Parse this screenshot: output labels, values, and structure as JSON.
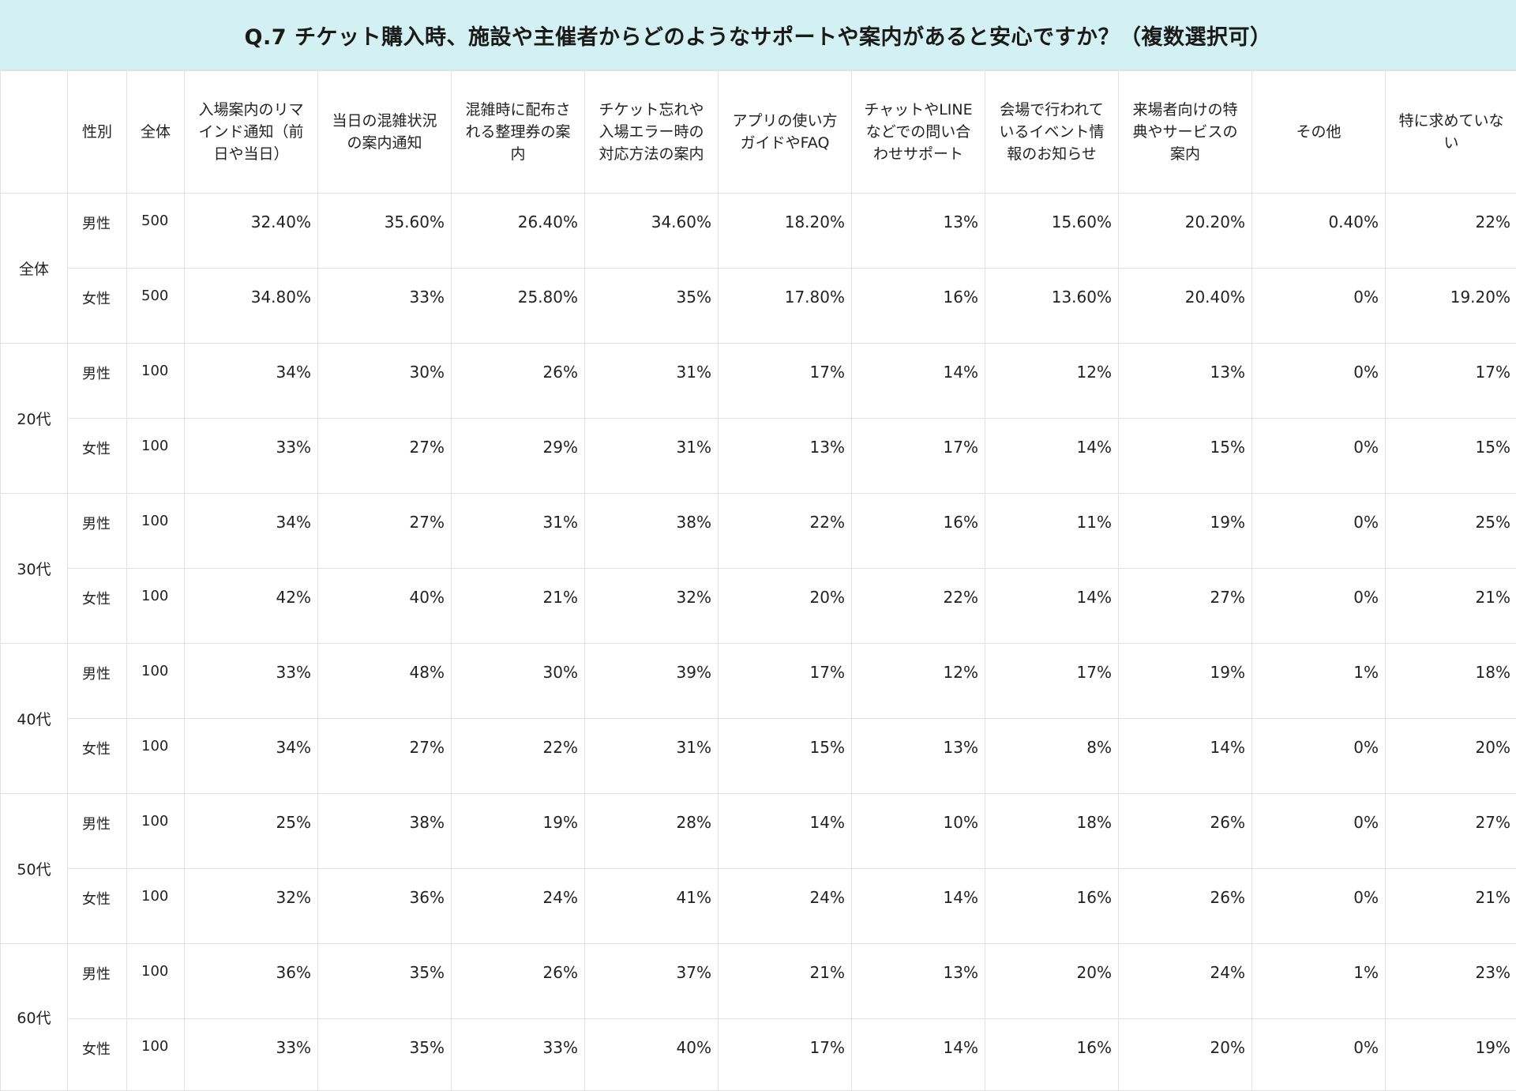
{
  "title": "Q.7 チケット購入時、施設や主催者からどのようなサポートや案内があると安心ですか？（複数選択可）",
  "colors": {
    "title_bg": "#d3f0f2",
    "grid": "#e2e2e2"
  },
  "chart_data": {
    "type": "table",
    "title": "Q.7 チケット購入時、施設や主催者からどのようなサポートや案内があると安心ですか？（複数選択可）",
    "columns": [
      "",
      "性別",
      "全体",
      "入場案内のリマインド通知（前日や当日）",
      "当日の混雑状況の案内通知",
      "混雑時に配布される整理券の案内",
      "チケット忘れや入場エラー時の対応方法の案内",
      "アプリの使い方ガイドやFAQ",
      "チャットやLINEなどでの問い合わせサポート",
      "会場で行われているイベント情報のお知らせ",
      "来場者向けの特典やサービスの案内",
      "その他",
      "特に求めていない"
    ],
    "groups": [
      {
        "label": "全体",
        "rows": [
          {
            "gender": "男性",
            "total": "500",
            "values": [
              "32.40%",
              "35.60%",
              "26.40%",
              "34.60%",
              "18.20%",
              "13%",
              "15.60%",
              "20.20%",
              "0.40%",
              "22%"
            ]
          },
          {
            "gender": "女性",
            "total": "500",
            "values": [
              "34.80%",
              "33%",
              "25.80%",
              "35%",
              "17.80%",
              "16%",
              "13.60%",
              "20.40%",
              "0%",
              "19.20%"
            ]
          }
        ]
      },
      {
        "label": "20代",
        "rows": [
          {
            "gender": "男性",
            "total": "100",
            "values": [
              "34%",
              "30%",
              "26%",
              "31%",
              "17%",
              "14%",
              "12%",
              "13%",
              "0%",
              "17%"
            ]
          },
          {
            "gender": "女性",
            "total": "100",
            "values": [
              "33%",
              "27%",
              "29%",
              "31%",
              "13%",
              "17%",
              "14%",
              "15%",
              "0%",
              "15%"
            ]
          }
        ]
      },
      {
        "label": "30代",
        "rows": [
          {
            "gender": "男性",
            "total": "100",
            "values": [
              "34%",
              "27%",
              "31%",
              "38%",
              "22%",
              "16%",
              "11%",
              "19%",
              "0%",
              "25%"
            ]
          },
          {
            "gender": "女性",
            "total": "100",
            "values": [
              "42%",
              "40%",
              "21%",
              "32%",
              "20%",
              "22%",
              "14%",
              "27%",
              "0%",
              "21%"
            ]
          }
        ]
      },
      {
        "label": "40代",
        "rows": [
          {
            "gender": "男性",
            "total": "100",
            "values": [
              "33%",
              "48%",
              "30%",
              "39%",
              "17%",
              "12%",
              "17%",
              "19%",
              "1%",
              "18%"
            ]
          },
          {
            "gender": "女性",
            "total": "100",
            "values": [
              "34%",
              "27%",
              "22%",
              "31%",
              "15%",
              "13%",
              "8%",
              "14%",
              "0%",
              "20%"
            ]
          }
        ]
      },
      {
        "label": "50代",
        "rows": [
          {
            "gender": "男性",
            "total": "100",
            "values": [
              "25%",
              "38%",
              "19%",
              "28%",
              "14%",
              "10%",
              "18%",
              "26%",
              "0%",
              "27%"
            ]
          },
          {
            "gender": "女性",
            "total": "100",
            "values": [
              "32%",
              "36%",
              "24%",
              "41%",
              "24%",
              "14%",
              "16%",
              "26%",
              "0%",
              "21%"
            ]
          }
        ]
      },
      {
        "label": "60代",
        "rows": [
          {
            "gender": "男性",
            "total": "100",
            "values": [
              "36%",
              "35%",
              "26%",
              "37%",
              "21%",
              "13%",
              "20%",
              "24%",
              "1%",
              "23%"
            ]
          },
          {
            "gender": "女性",
            "total": "100",
            "values": [
              "33%",
              "35%",
              "33%",
              "40%",
              "17%",
              "14%",
              "16%",
              "20%",
              "0%",
              "19%"
            ]
          }
        ]
      }
    ]
  }
}
